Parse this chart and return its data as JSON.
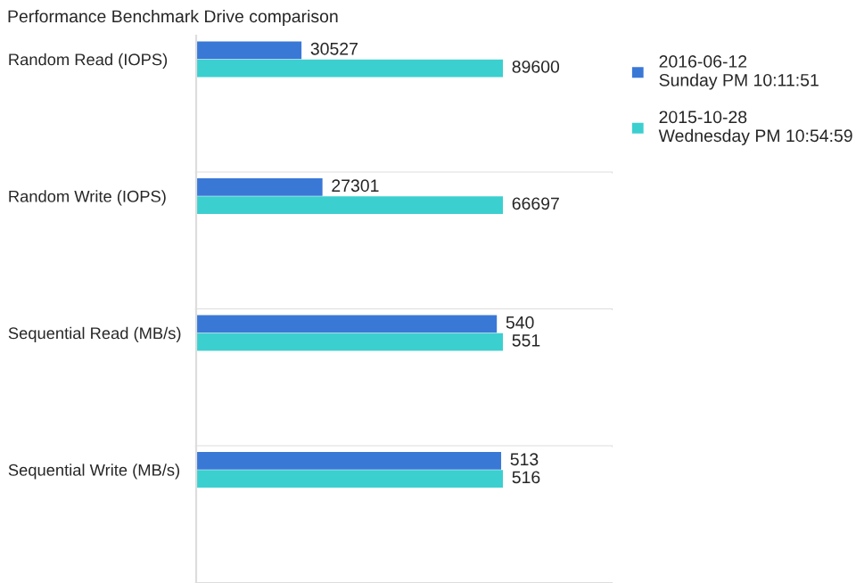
{
  "chart_data": [
    {
      "type": "bar",
      "orientation": "horizontal",
      "title": "Performance Benchmark Drive comparison",
      "categories": [
        "Random Read (IOPS)"
      ],
      "data_labels": true,
      "legend": "right",
      "series": [
        {
          "name": "2016-06-12\nSunday PM 10:11:51",
          "color": "#3a78d6",
          "values": [
            30527
          ]
        },
        {
          "name": "2015-10-28\nWednesday PM 10:54:59",
          "color": "#3ccfcf",
          "values": [
            89600
          ]
        }
      ]
    },
    {
      "type": "bar",
      "orientation": "horizontal",
      "categories": [
        "Random Write (IOPS)"
      ],
      "data_labels": true,
      "series": [
        {
          "color": "#3a78d6",
          "values": [
            27301
          ]
        },
        {
          "color": "#3ccfcf",
          "values": [
            66697
          ]
        }
      ]
    },
    {
      "type": "bar",
      "orientation": "horizontal",
      "categories": [
        "Sequential Read (MB/s)"
      ],
      "data_labels": true,
      "series": [
        {
          "color": "#3a78d6",
          "values": [
            540
          ]
        },
        {
          "color": "#3ccfcf",
          "values": [
            551
          ]
        }
      ]
    },
    {
      "type": "bar",
      "orientation": "horizontal",
      "categories": [
        "Sequential Write (MB/s)"
      ],
      "data_labels": true,
      "series": [
        {
          "color": "#3a78d6",
          "values": [
            513
          ]
        },
        {
          "color": "#3ccfcf",
          "values": [
            516
          ]
        }
      ]
    }
  ]
}
